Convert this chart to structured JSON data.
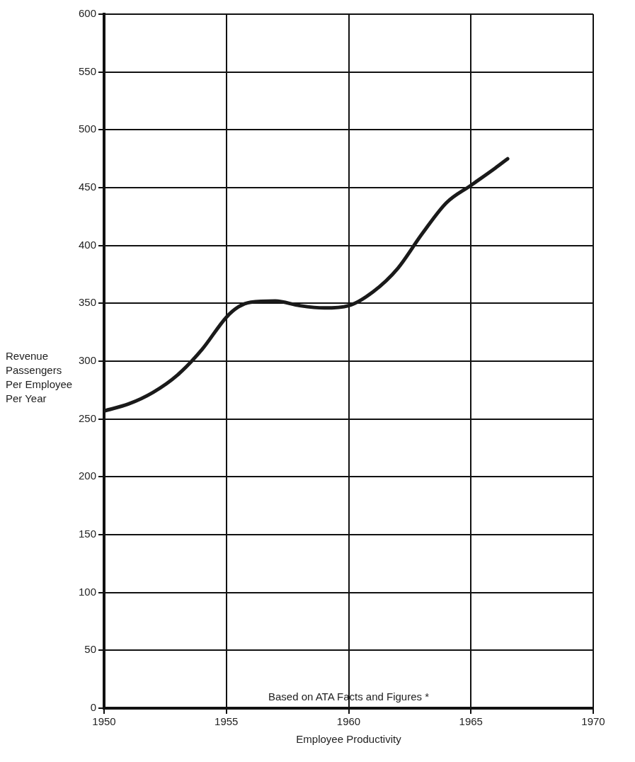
{
  "chart_data": {
    "type": "line",
    "xlabel": "Employee Productivity",
    "ylabel": "Revenue Passengers Per Employee Per Year",
    "annotations": [
      "Based on ATA Facts and Figures *"
    ],
    "x": [
      1950,
      1951,
      1952,
      1953,
      1954,
      1955,
      1955.5,
      1956,
      1957,
      1958,
      1959,
      1960,
      1961,
      1962,
      1963,
      1964,
      1965,
      1966,
      1966.5
    ],
    "series": [
      {
        "color": "#1a1a1a",
        "values": [
          257,
          263,
          273,
          288,
          310,
          338,
          347,
          351,
          352,
          348,
          346,
          348,
          360,
          380,
          410,
          437,
          452,
          467,
          475
        ]
      }
    ],
    "xlim": [
      1950,
      1970
    ],
    "xticks": [
      1950,
      1955,
      1960,
      1965,
      1970
    ],
    "ylim": [
      0,
      600
    ],
    "yticks": [
      0,
      50,
      100,
      150,
      200,
      250,
      300,
      350,
      400,
      450,
      500,
      550,
      600
    ],
    "grid": true,
    "legend": false,
    "marker": "none",
    "line_style": "solid"
  }
}
